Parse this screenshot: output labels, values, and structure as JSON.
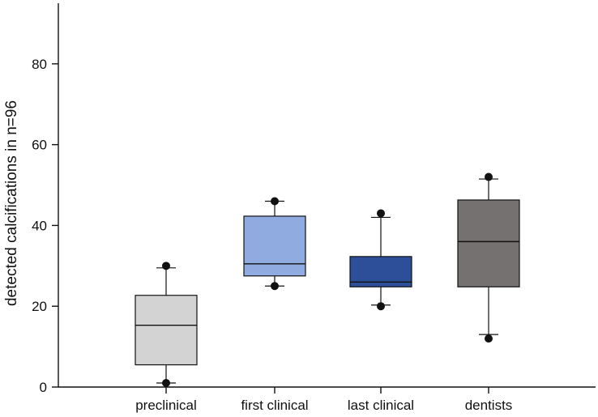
{
  "chart_data": {
    "type": "box",
    "title": "",
    "xlabel": "",
    "ylabel": "detected calcifications in n=96",
    "ylim": [
      0,
      95
    ],
    "yticks": [
      0,
      20,
      40,
      60,
      80
    ],
    "grid": false,
    "categories": [
      "preclinical",
      "first clinical",
      "last clinical",
      "dentists"
    ],
    "series": [
      {
        "category": "preclinical",
        "whisker_low": 1,
        "q1": 5.5,
        "median": 15.3,
        "q3": 22.7,
        "whisker_high": 29.5,
        "outliers": [
          1,
          30
        ],
        "color": "#d3d3d3"
      },
      {
        "category": "first clinical",
        "whisker_low": 25,
        "q1": 27.5,
        "median": 30.5,
        "q3": 42.3,
        "whisker_high": 46,
        "outliers": [
          25,
          46
        ],
        "color": "#8fabe0"
      },
      {
        "category": "last clinical",
        "whisker_low": 20.3,
        "q1": 24.8,
        "median": 26,
        "q3": 32.3,
        "whisker_high": 42,
        "outliers": [
          20,
          43
        ],
        "color": "#2d4f99"
      },
      {
        "category": "dentists",
        "whisker_low": 13,
        "q1": 24.8,
        "median": 36,
        "q3": 46.3,
        "whisker_high": 51.5,
        "outliers": [
          12,
          52
        ],
        "color": "#757171"
      }
    ]
  }
}
